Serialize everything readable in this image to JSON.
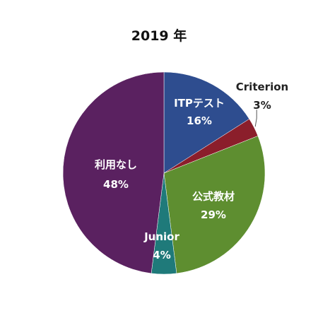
{
  "chart_data": {
    "type": "pie",
    "title": "2019 年",
    "slices": [
      {
        "label": "ITPテスト",
        "value": 16,
        "value_label": "16%",
        "color": "#2E4D8F",
        "label_color": "#ffffff"
      },
      {
        "label": "Criterion",
        "value": 3,
        "value_label": "3%",
        "color": "#8B1E2B",
        "label_color": "#222222"
      },
      {
        "label": "公式教材",
        "value": 29,
        "value_label": "29%",
        "color": "#5E8E30",
        "label_color": "#ffffff"
      },
      {
        "label": "Junior",
        "value": 4,
        "value_label": "4%",
        "color": "#1F7A7A",
        "label_color": "#ffffff"
      },
      {
        "label": "利用なし",
        "value": 48,
        "value_label": "48%",
        "color": "#5A2160",
        "label_color": "#ffffff"
      }
    ],
    "start": "12 o'clock",
    "direction": "clockwise",
    "legend": "none"
  }
}
